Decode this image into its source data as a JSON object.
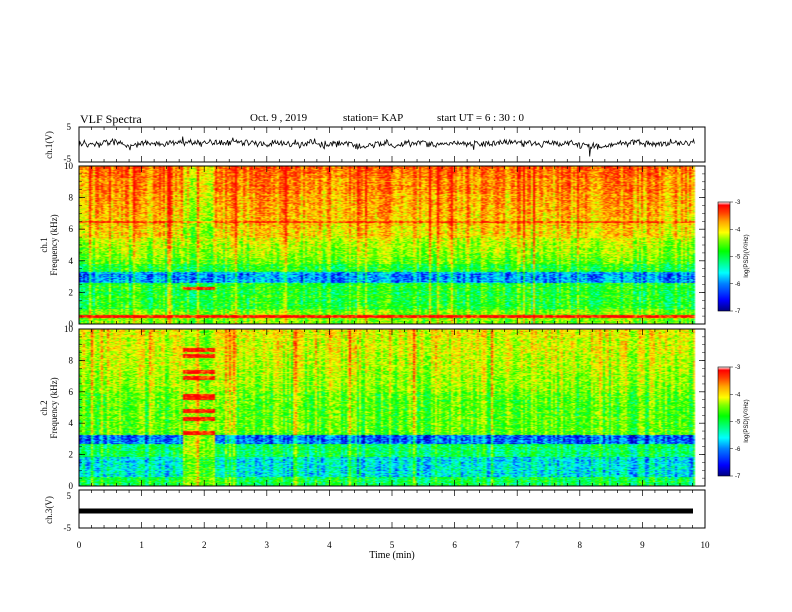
{
  "header": {
    "title": "VLF Spectra",
    "date": "Oct. 9 , 2019",
    "station": "station= KAP",
    "start": "start  UT =   6  : 30 : 0"
  },
  "chart_data": [
    {
      "type": "line",
      "panel": "ch1-waveform",
      "ylabel": "ch.1(V)",
      "ylim": [
        -5,
        5
      ],
      "yticks": [
        "5",
        "-5"
      ],
      "x_range_min": [
        0,
        9.83
      ],
      "trace_color": "#000000",
      "baseline_volts": 0.3,
      "noise_amplitude_volts": 1.6
    },
    {
      "type": "heatmap",
      "panel": "ch1-spectrogram",
      "ylabel": "ch.1 Frequency (kHz)",
      "ylim": [
        0,
        10
      ],
      "yticks": [
        "0",
        "2",
        "4",
        "6",
        "8",
        "10"
      ],
      "x_range_min": [
        0,
        9.83
      ],
      "colorbar": {
        "label": "log(PSD)(V²/Hz)",
        "range": [
          -7,
          -3
        ],
        "ticks": [
          "-3",
          "-4",
          "-5",
          "-6",
          "-7"
        ]
      },
      "features": {
        "high_band_khz": [
          5.5,
          10
        ],
        "low_dark_band_khz": [
          2.6,
          3.3
        ],
        "transmitter_line_khz": 0.5,
        "disturbance_interval_min": [
          1.63,
          2.17
        ]
      }
    },
    {
      "type": "heatmap",
      "panel": "ch2-spectrogram",
      "ylabel": "ch.2 Frequency (kHz)",
      "ylim": [
        0,
        10
      ],
      "yticks": [
        "0",
        "2",
        "4",
        "6",
        "8",
        "10"
      ],
      "x_range_min": [
        0,
        9.83
      ],
      "colorbar": {
        "label": "log(PSD)(V²/Hz)",
        "range": [
          -7,
          -3
        ],
        "ticks": [
          "-3",
          "-4",
          "-5",
          "-6",
          "-7"
        ]
      },
      "features": {
        "dark_band_khz": [
          2.7,
          3.3
        ],
        "low_blue_band_khz": [
          0.6,
          1.9
        ],
        "disturbance_interval_min": [
          1.63,
          2.17
        ],
        "disturbance_line_khz": [
          8.7,
          8.3,
          7.3,
          6.9,
          5.8,
          5.6,
          4.8,
          4.3,
          3.4
        ]
      }
    },
    {
      "type": "line",
      "panel": "ch3-waveform",
      "ylabel": "ch.3(V)",
      "ylim": [
        -5,
        5
      ],
      "yticks": [
        "5",
        "-5"
      ],
      "x_range_min": [
        0,
        9.83
      ],
      "trace_color": "#000000",
      "baseline_volts": 0
    }
  ],
  "x_axis": {
    "label": "Time  (min)",
    "range": [
      0,
      10
    ],
    "ticks": [
      "0",
      "1",
      "2",
      "3",
      "4",
      "5",
      "6",
      "7",
      "8",
      "9",
      "10"
    ]
  },
  "colormap": [
    "#000080",
    "#0000ff",
    "#0080ff",
    "#00ffff",
    "#00ff80",
    "#00ff00",
    "#80ff00",
    "#ffff00",
    "#ffa500",
    "#ff4000",
    "#ff0000"
  ]
}
